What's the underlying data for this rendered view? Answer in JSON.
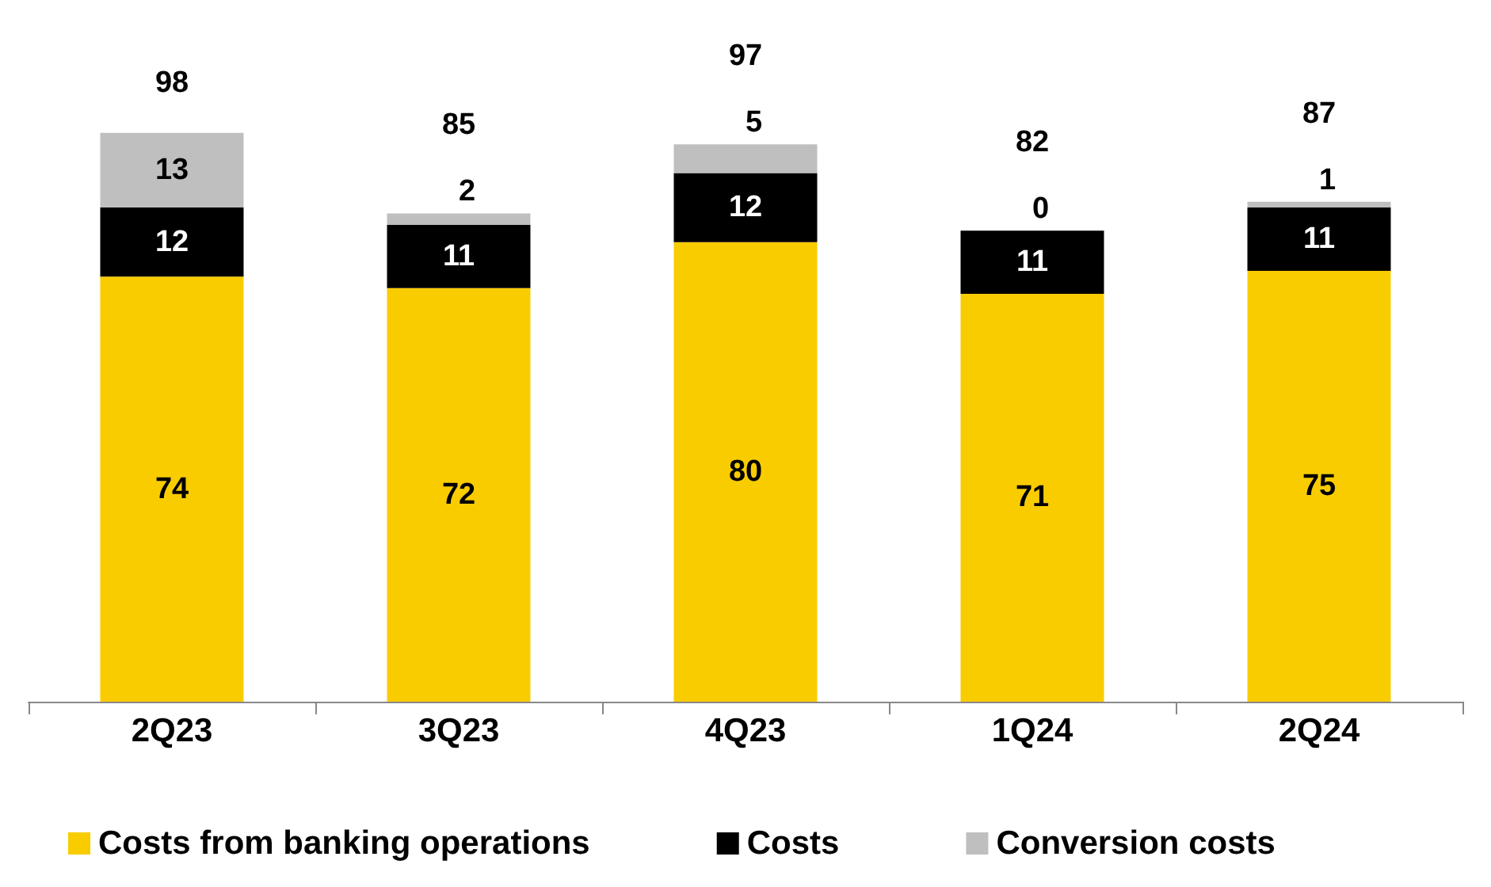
{
  "chart_data": {
    "type": "bar",
    "stacked": true,
    "categories": [
      "2Q23",
      "3Q23",
      "4Q23",
      "1Q24",
      "2Q24"
    ],
    "series": [
      {
        "name": "Costs from banking operations",
        "color": "#f9cc00",
        "values": [
          74,
          72,
          80,
          71,
          75
        ]
      },
      {
        "name": "Costs",
        "color": "#000000",
        "values": [
          12,
          11,
          12,
          11,
          11
        ]
      },
      {
        "name": "Conversion costs",
        "color": "#bfbfbf",
        "values": [
          13,
          2,
          5,
          0,
          1
        ]
      }
    ],
    "data_labels": true,
    "totals": [
      "98",
      "85",
      "97",
      "82",
      "87"
    ],
    "legend": "bottom"
  }
}
